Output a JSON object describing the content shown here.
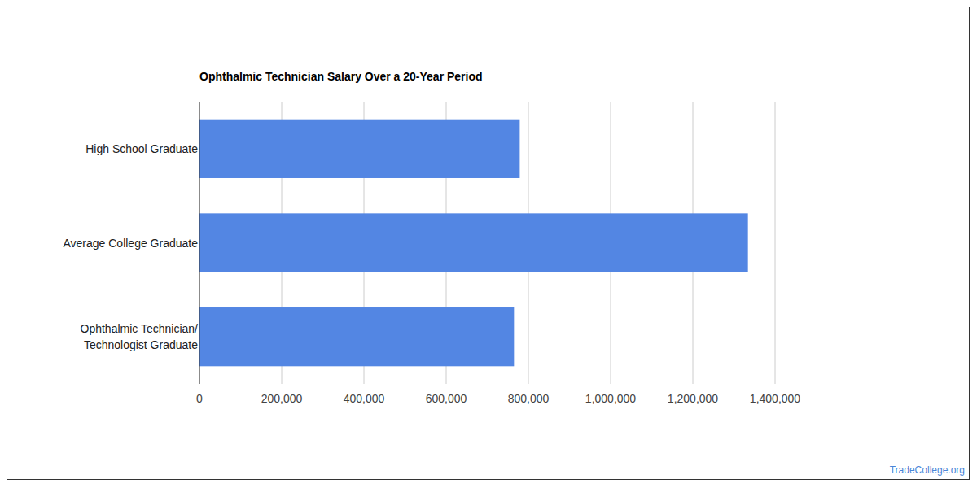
{
  "chart_data": {
    "type": "bar",
    "title": "Ophthalmic Technician Salary Over a 20-Year Period",
    "categories": [
      "High School Graduate",
      "Average College Graduate",
      "Ophthalmic Technician/\nTechnologist Graduate"
    ],
    "values": [
      779000,
      1334000,
      765000
    ],
    "color": "#5386e3",
    "orientation": "horizontal",
    "xlim": [
      0,
      1400000
    ],
    "xticks": [
      0,
      {
        "value": 200000,
        "label": "200,000"
      },
      {
        "value": 400000,
        "label": "400,000"
      },
      {
        "value": 600000,
        "label": "600,000"
      },
      {
        "value": 800000,
        "label": "800,000"
      },
      {
        "value": 1000000,
        "label": "1,000,000"
      },
      {
        "value": 1200000,
        "label": "1,200,000"
      },
      {
        "value": 1400000,
        "label": "1,400,000"
      }
    ],
    "grid": true,
    "source": "TradeCollege.org"
  }
}
